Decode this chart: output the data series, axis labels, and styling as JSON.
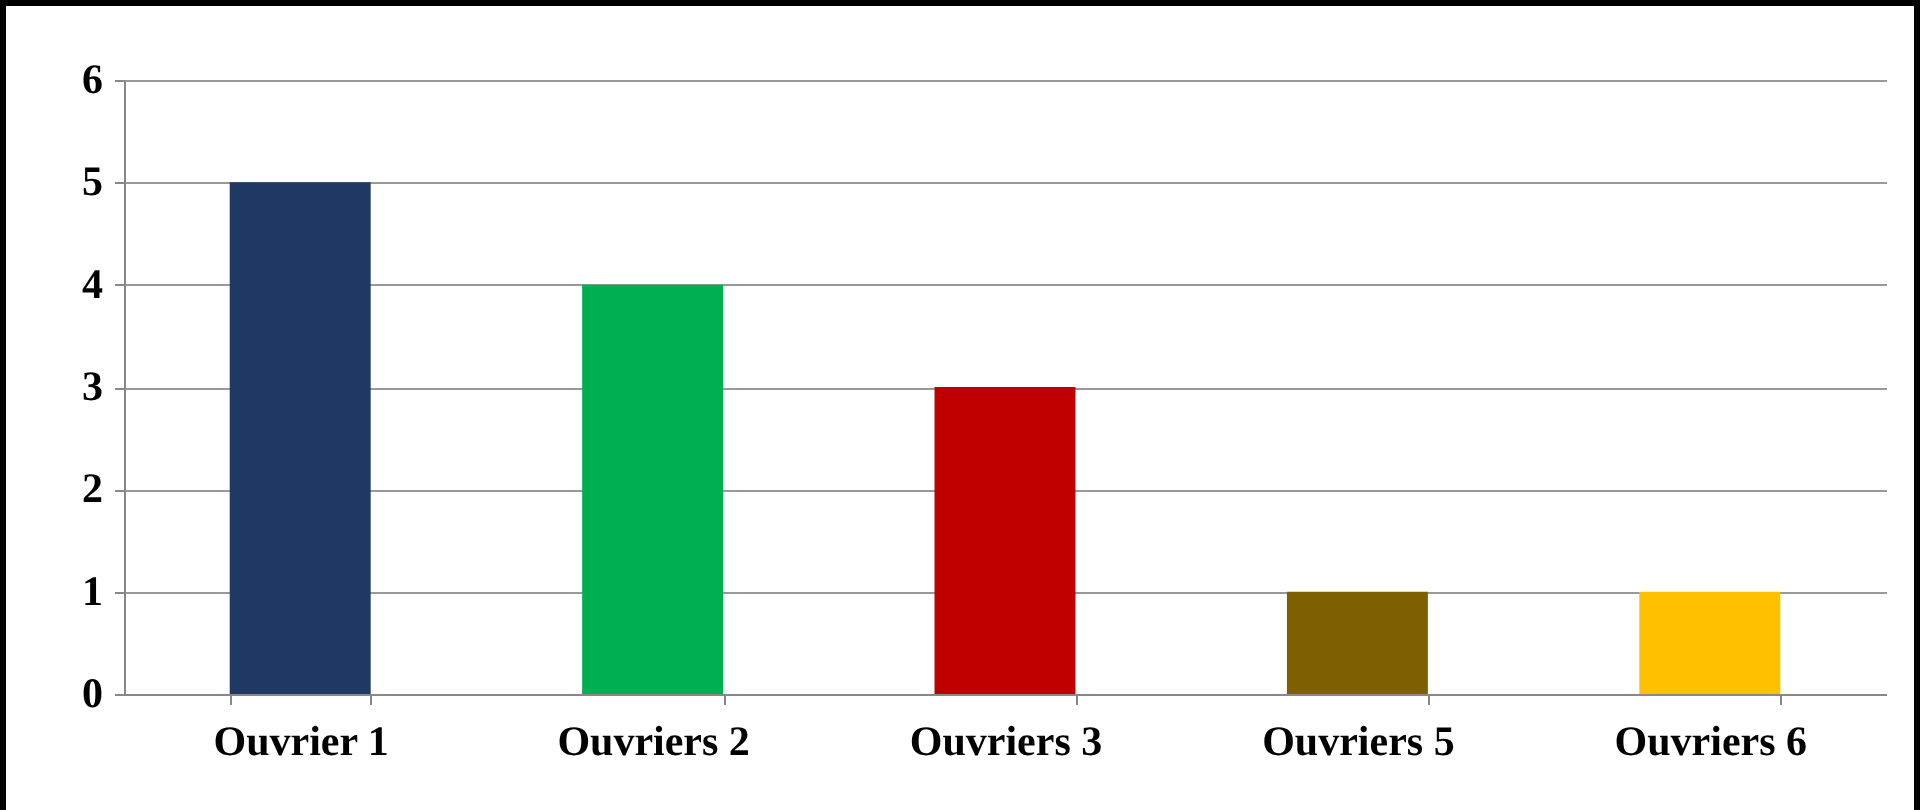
{
  "chart_data": {
    "type": "bar",
    "categories": [
      "Ouvrier 1",
      "Ouvriers 2",
      "Ouvriers 3",
      "Ouvriers 5",
      "Ouvriers 6"
    ],
    "values": [
      5,
      4,
      3,
      1,
      1
    ],
    "colors": [
      "#203864",
      "#00b050",
      "#c00000",
      "#7f6000",
      "#ffc000"
    ],
    "ylim": [
      0,
      6
    ],
    "yticks": [
      0,
      1,
      2,
      3,
      4,
      5,
      6
    ],
    "grid": "y"
  }
}
